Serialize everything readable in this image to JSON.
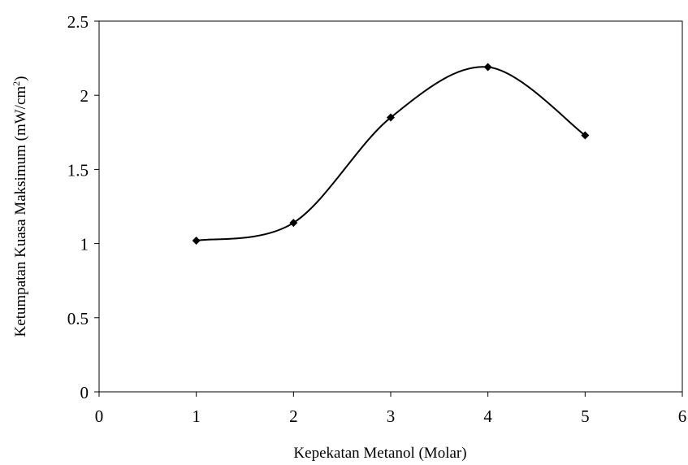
{
  "chart_data": {
    "type": "line",
    "smoothed": true,
    "marker": "diamond",
    "title": "",
    "xlabel": "Kepekatan Metanol (Molar)",
    "ylabel": {
      "main": "Ketumpatan Kuasa Maksimum (mW/cm",
      "sup": "2",
      "close": ")"
    },
    "xlim": [
      0,
      6
    ],
    "ylim": [
      0,
      2.5
    ],
    "xticks": [
      "0",
      "1",
      "2",
      "3",
      "4",
      "5",
      "6"
    ],
    "yticks": [
      "0",
      "0.5",
      "1",
      "1.5",
      "2",
      "2.5"
    ],
    "grid": false,
    "series": [
      {
        "x": [
          1,
          2,
          3,
          4,
          5
        ],
        "y": [
          1.02,
          1.14,
          1.85,
          2.19,
          1.73
        ]
      }
    ],
    "colors": {
      "line": "#000000",
      "marker": "#000000",
      "axis": "#000000"
    }
  }
}
